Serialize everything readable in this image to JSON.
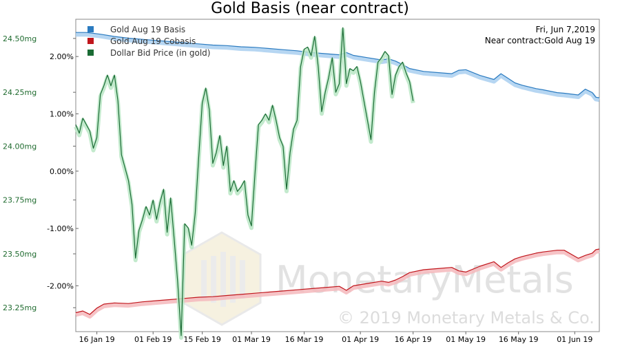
{
  "chart_data": {
    "type": "line",
    "title": "Gold Basis (near contract)",
    "annotation": {
      "date": "Fri, Jun 7,2019",
      "contract": "Near contract:Gold Aug 19"
    },
    "x_ticks": [
      "16 Jan 19",
      "01 Feb 19",
      "15 Feb 19",
      "01 Mar 19",
      "16 Mar 19",
      "01 Apr 19",
      "16 Apr 19",
      "01 May 19",
      "16 May 19",
      "01 Jun 19"
    ],
    "x_tick_days": [
      15,
      31,
      45,
      59,
      74,
      90,
      105,
      120,
      135,
      151
    ],
    "x_range_days": [
      9,
      158
    ],
    "left_axis": {
      "ticks": [
        "24.50mg",
        "24.25mg",
        "24.00mg",
        "23.75mg",
        "23.50mg",
        "23.25mg"
      ],
      "values": [
        24.5,
        24.25,
        24.0,
        23.75,
        23.5,
        23.25
      ],
      "range": [
        23.139,
        24.589
      ]
    },
    "right_axis": {
      "ticks": [
        "2.00%",
        "1.00%",
        "0.00%",
        "-1.00%",
        "-2.00%"
      ],
      "values": [
        2.0,
        1.0,
        0.0,
        -1.0,
        -2.0
      ],
      "range": [
        -2.8,
        2.65
      ]
    },
    "legend": [
      "Gold Aug 19 Basis",
      "Gold Aug 19 Cobasis",
      "Dollar Bid Price (in gold)"
    ],
    "colors": {
      "basis": "#2b7bc0",
      "cobasis": "#c0161c",
      "dollar": "#1a6b34",
      "basis_glow": "#a9cff0",
      "cobasis_glow": "#f4b9bc",
      "dollar_glow": "#b8e6c4"
    },
    "series": [
      {
        "name": "Gold Aug 19 Basis",
        "axis": "right",
        "color": "#2b7bc0",
        "points": [
          [
            9,
            2.42
          ],
          [
            12,
            2.42
          ],
          [
            16,
            2.39
          ],
          [
            20,
            2.35
          ],
          [
            24,
            2.32
          ],
          [
            28,
            2.3
          ],
          [
            32,
            2.28
          ],
          [
            36,
            2.26
          ],
          [
            40,
            2.24
          ],
          [
            44,
            2.22
          ],
          [
            48,
            2.2
          ],
          [
            52,
            2.19
          ],
          [
            56,
            2.17
          ],
          [
            60,
            2.16
          ],
          [
            64,
            2.14
          ],
          [
            68,
            2.12
          ],
          [
            72,
            2.1
          ],
          [
            76,
            2.07
          ],
          [
            80,
            2.05
          ],
          [
            84,
            2.03
          ],
          [
            86,
            2.07
          ],
          [
            88,
            2.02
          ],
          [
            92,
            1.98
          ],
          [
            96,
            1.94
          ],
          [
            98,
            1.96
          ],
          [
            100,
            1.92
          ],
          [
            102,
            1.86
          ],
          [
            104,
            1.79
          ],
          [
            108,
            1.74
          ],
          [
            112,
            1.72
          ],
          [
            116,
            1.7
          ],
          [
            118,
            1.76
          ],
          [
            120,
            1.77
          ],
          [
            124,
            1.67
          ],
          [
            128,
            1.6
          ],
          [
            130,
            1.7
          ],
          [
            132,
            1.62
          ],
          [
            134,
            1.54
          ],
          [
            136,
            1.5
          ],
          [
            138,
            1.47
          ],
          [
            140,
            1.44
          ],
          [
            142,
            1.42
          ],
          [
            146,
            1.37
          ],
          [
            148,
            1.36
          ],
          [
            152,
            1.33
          ],
          [
            154,
            1.43
          ],
          [
            156,
            1.37
          ],
          [
            157,
            1.29
          ],
          [
            158,
            1.28
          ]
        ]
      },
      {
        "name": "Gold Aug 19 Cobasis",
        "axis": "right",
        "color": "#c0161c",
        "points": [
          [
            9,
            -2.47
          ],
          [
            11,
            -2.44
          ],
          [
            13,
            -2.5
          ],
          [
            15,
            -2.39
          ],
          [
            17,
            -2.32
          ],
          [
            20,
            -2.3
          ],
          [
            24,
            -2.31
          ],
          [
            28,
            -2.28
          ],
          [
            32,
            -2.26
          ],
          [
            36,
            -2.24
          ],
          [
            40,
            -2.22
          ],
          [
            44,
            -2.2
          ],
          [
            48,
            -2.19
          ],
          [
            52,
            -2.17
          ],
          [
            56,
            -2.15
          ],
          [
            60,
            -2.13
          ],
          [
            64,
            -2.11
          ],
          [
            68,
            -2.09
          ],
          [
            72,
            -2.07
          ],
          [
            76,
            -2.05
          ],
          [
            80,
            -2.03
          ],
          [
            84,
            -2.01
          ],
          [
            86,
            -2.08
          ],
          [
            88,
            -2.0
          ],
          [
            92,
            -1.96
          ],
          [
            96,
            -1.92
          ],
          [
            98,
            -1.94
          ],
          [
            100,
            -1.9
          ],
          [
            102,
            -1.84
          ],
          [
            104,
            -1.77
          ],
          [
            108,
            -1.72
          ],
          [
            112,
            -1.7
          ],
          [
            116,
            -1.68
          ],
          [
            118,
            -1.74
          ],
          [
            120,
            -1.76
          ],
          [
            124,
            -1.66
          ],
          [
            128,
            -1.58
          ],
          [
            130,
            -1.68
          ],
          [
            132,
            -1.6
          ],
          [
            134,
            -1.53
          ],
          [
            136,
            -1.49
          ],
          [
            138,
            -1.46
          ],
          [
            140,
            -1.43
          ],
          [
            142,
            -1.41
          ],
          [
            146,
            -1.38
          ],
          [
            148,
            -1.38
          ],
          [
            152,
            -1.52
          ],
          [
            154,
            -1.47
          ],
          [
            156,
            -1.43
          ],
          [
            157,
            -1.37
          ],
          [
            158,
            -1.36
          ]
        ]
      },
      {
        "name": "Dollar Bid Price (in gold)",
        "axis": "left",
        "color": "#1a6b34",
        "points": [
          [
            9,
            24.1
          ],
          [
            10,
            24.06
          ],
          [
            11,
            24.13
          ],
          [
            13,
            24.07
          ],
          [
            14,
            23.99
          ],
          [
            15,
            24.04
          ],
          [
            16,
            24.24
          ],
          [
            17,
            24.28
          ],
          [
            18,
            24.33
          ],
          [
            19,
            24.28
          ],
          [
            20,
            24.33
          ],
          [
            21,
            24.21
          ],
          [
            22,
            23.96
          ],
          [
            24,
            23.84
          ],
          [
            25,
            23.73
          ],
          [
            26,
            23.48
          ],
          [
            27,
            23.61
          ],
          [
            28,
            23.66
          ],
          [
            29,
            23.72
          ],
          [
            30,
            23.68
          ],
          [
            31,
            23.75
          ],
          [
            32,
            23.66
          ],
          [
            33,
            23.74
          ],
          [
            34,
            23.8
          ],
          [
            35,
            23.6
          ],
          [
            36,
            23.76
          ],
          [
            37,
            23.57
          ],
          [
            38,
            23.37
          ],
          [
            39,
            23.12
          ],
          [
            40,
            23.64
          ],
          [
            41,
            23.62
          ],
          [
            42,
            23.54
          ],
          [
            43,
            23.69
          ],
          [
            44,
            23.95
          ],
          [
            45,
            24.2
          ],
          [
            46,
            24.27
          ],
          [
            47,
            24.17
          ],
          [
            48,
            23.92
          ],
          [
            49,
            23.97
          ],
          [
            50,
            24.05
          ],
          [
            51,
            23.91
          ],
          [
            52,
            24.0
          ],
          [
            53,
            23.79
          ],
          [
            54,
            23.84
          ],
          [
            55,
            23.79
          ],
          [
            56,
            23.81
          ],
          [
            57,
            23.84
          ],
          [
            58,
            23.68
          ],
          [
            59,
            23.63
          ],
          [
            60,
            23.87
          ],
          [
            61,
            24.1
          ],
          [
            62,
            24.12
          ],
          [
            63,
            24.15
          ],
          [
            64,
            24.12
          ],
          [
            65,
            24.19
          ],
          [
            66,
            24.12
          ],
          [
            67,
            24.04
          ],
          [
            68,
            24.0
          ],
          [
            69,
            23.8
          ],
          [
            70,
            23.97
          ],
          [
            71,
            24.08
          ],
          [
            72,
            24.12
          ],
          [
            73,
            24.37
          ],
          [
            74,
            24.45
          ],
          [
            75,
            24.46
          ],
          [
            76,
            24.42
          ],
          [
            77,
            24.51
          ],
          [
            78,
            24.37
          ],
          [
            79,
            24.16
          ],
          [
            80,
            24.25
          ],
          [
            81,
            24.32
          ],
          [
            82,
            24.41
          ],
          [
            83,
            24.25
          ],
          [
            84,
            24.29
          ],
          [
            85,
            24.55
          ],
          [
            86,
            24.29
          ],
          [
            87,
            24.36
          ],
          [
            88,
            24.35
          ],
          [
            89,
            24.37
          ],
          [
            90,
            24.3
          ],
          [
            91,
            24.21
          ],
          [
            92,
            24.12
          ],
          [
            93,
            24.03
          ],
          [
            94,
            24.25
          ],
          [
            95,
            24.39
          ],
          [
            96,
            24.41
          ],
          [
            97,
            24.44
          ],
          [
            98,
            24.42
          ],
          [
            99,
            24.24
          ],
          [
            100,
            24.33
          ],
          [
            101,
            24.37
          ],
          [
            102,
            24.39
          ],
          [
            103,
            24.34
          ],
          [
            104,
            24.3
          ],
          [
            105,
            24.21
          ]
        ]
      }
    ]
  },
  "watermark": {
    "brand": "MonetaryMetals",
    "copyright": "© 2019 Monetary Metals & Co."
  }
}
